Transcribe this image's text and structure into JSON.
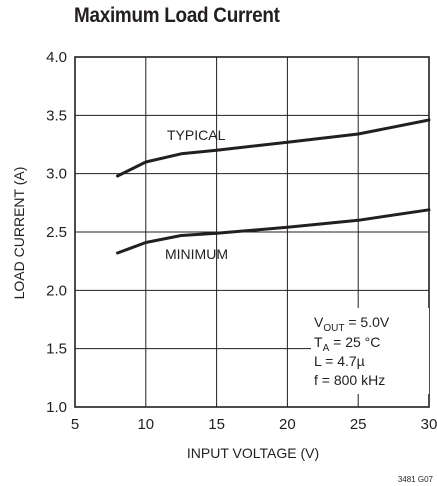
{
  "chart_data": {
    "type": "line",
    "title": "Maximum Load Current",
    "xlabel": "INPUT VOLTAGE (V)",
    "ylabel": "LOAD CURRENT (A)",
    "xlim": [
      5,
      30
    ],
    "ylim": [
      1.0,
      4.0
    ],
    "xticks": [
      5,
      10,
      15,
      20,
      25,
      30
    ],
    "yticks": [
      1.0,
      1.5,
      2.0,
      2.5,
      3.0,
      3.5,
      4.0
    ],
    "xtick_labels": [
      "5",
      "10",
      "15",
      "20",
      "25",
      "30"
    ],
    "ytick_labels": [
      "1.0",
      "1.5",
      "2.0",
      "2.5",
      "3.0",
      "3.5",
      "4.0"
    ],
    "grid": true,
    "series": [
      {
        "name": "TYPICAL",
        "x": [
          8,
          10,
          12.5,
          15,
          20,
          25,
          30
        ],
        "y": [
          2.98,
          3.1,
          3.17,
          3.2,
          3.27,
          3.34,
          3.46
        ]
      },
      {
        "name": "MINIMUM",
        "x": [
          8,
          10,
          12.5,
          15,
          20,
          25,
          30
        ],
        "y": [
          2.32,
          2.41,
          2.47,
          2.49,
          2.54,
          2.6,
          2.69
        ]
      }
    ],
    "conditions": {
      "vout": {
        "main": "V",
        "sub": "OUT",
        "rest": " = 5.0V"
      },
      "ta": {
        "main": "T",
        "sub": "A",
        "rest": " = 25 °C"
      },
      "l": "L = 4.7µ",
      "f": "f = 800 kHz"
    },
    "footer": "3481 G07"
  }
}
